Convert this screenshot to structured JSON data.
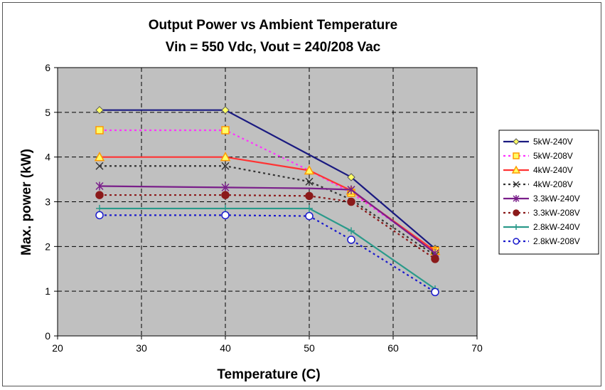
{
  "chart_data": {
    "type": "line",
    "title": "Output Power vs Ambient Temperature",
    "subtitle": "Vin = 550 Vdc, Vout = 240/208 Vac",
    "xlabel": "Temperature (C)",
    "ylabel": "Max. power (kW)",
    "xlim": [
      20,
      70
    ],
    "ylim": [
      0,
      6
    ],
    "xticks": [
      "20",
      "30",
      "40",
      "50",
      "60",
      "70"
    ],
    "yticks": [
      "0",
      "1",
      "2",
      "3",
      "4",
      "5",
      "6"
    ],
    "grid": true,
    "legend_position": "right",
    "plot_background": "#c0c0c0",
    "x": [
      25,
      40,
      50,
      55,
      65
    ],
    "series": [
      {
        "name": "5kW-240V",
        "values": [
          5.05,
          5.05,
          4.05,
          3.55,
          1.95
        ],
        "color": "#1a1a80",
        "dash": "solid",
        "marker": "diamond",
        "marker_fill": "#ffff66",
        "marker_stroke": "#555555",
        "point_x": [
          25,
          40,
          55,
          65
        ]
      },
      {
        "name": "5kW-208V",
        "values": [
          4.6,
          4.6,
          3.7,
          3.2,
          1.9
        ],
        "color": "#ff33ff",
        "dash": "dot",
        "marker": "square",
        "marker_fill": "#ffff66",
        "marker_stroke": "#ff9900",
        "point_x": [
          25,
          40,
          55,
          65
        ]
      },
      {
        "name": "4kW-240V",
        "values": [
          4.0,
          4.0,
          3.7,
          3.25,
          1.9
        ],
        "color": "#ff3333",
        "dash": "solid",
        "marker": "triangle",
        "marker_fill": "#ffff66",
        "marker_stroke": "#ff9900",
        "point_x": [
          25,
          40,
          50,
          55,
          65
        ]
      },
      {
        "name": "4kW-208V",
        "values": [
          3.8,
          3.8,
          3.45,
          3.05,
          1.8
        ],
        "color": "#333333",
        "dash": "dot",
        "marker": "x",
        "marker_fill": "none",
        "marker_stroke": "#333333",
        "point_x": [
          25,
          40,
          50,
          65
        ]
      },
      {
        "name": "3.3kW-240V",
        "values": [
          3.35,
          3.32,
          3.3,
          3.27,
          1.85
        ],
        "color": "#7a1f8a",
        "dash": "solid",
        "marker": "star",
        "marker_fill": "none",
        "marker_stroke": "#7a1f8a",
        "point_x": [
          25,
          40,
          55,
          65
        ]
      },
      {
        "name": "3.3kW-208V",
        "values": [
          3.15,
          3.15,
          3.13,
          3.0,
          1.72
        ],
        "color": "#8b1a1a",
        "dash": "dot",
        "marker": "circle",
        "marker_fill": "#8b1a1a",
        "marker_stroke": "#8b1a1a",
        "point_x": [
          25,
          40,
          50,
          55,
          65
        ]
      },
      {
        "name": "2.8kW-240V",
        "values": [
          2.85,
          2.85,
          2.85,
          2.35,
          1.05
        ],
        "color": "#2a9a8a",
        "dash": "solid",
        "marker": "plus",
        "marker_fill": "none",
        "marker_stroke": "#2a9a8a",
        "point_x": [
          25,
          40,
          50,
          55,
          65
        ]
      },
      {
        "name": "2.8kW-208V",
        "values": [
          2.7,
          2.7,
          2.68,
          2.15,
          0.98
        ],
        "color": "#1a1acc",
        "dash": "dot",
        "marker": "circle",
        "marker_fill": "#ffffff",
        "marker_stroke": "#1a1acc",
        "point_x": [
          25,
          40,
          50,
          55,
          65
        ]
      }
    ]
  }
}
